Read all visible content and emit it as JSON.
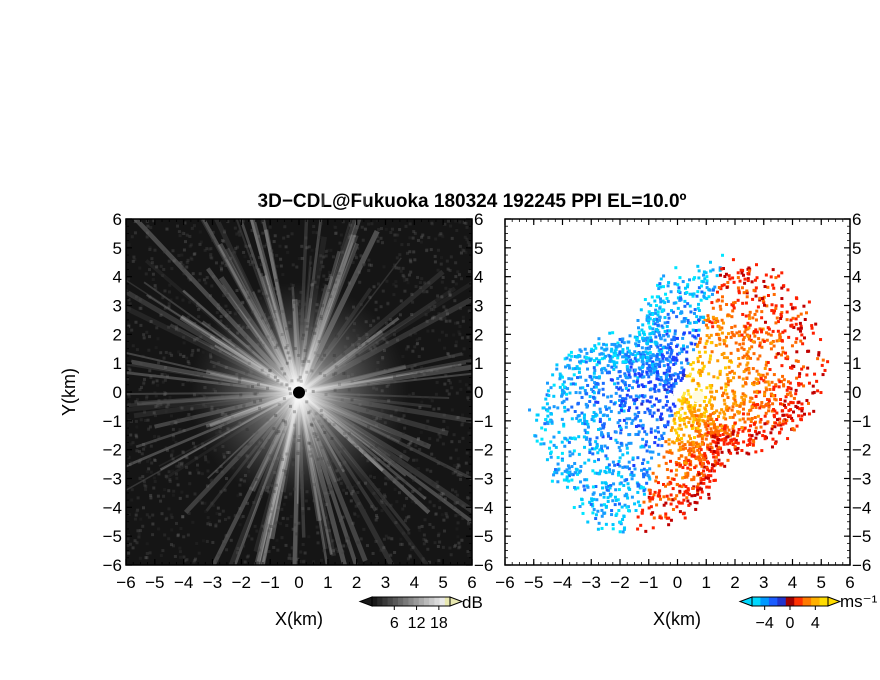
{
  "figure": {
    "title": "3D−CDL@Fukuoka 180324 192245 PPI EL=10.0º"
  },
  "chart_data": [
    {
      "type": "heatmap",
      "panel": "signal-intensity",
      "xlabel": "X(km)",
      "ylabel": "Y(km)",
      "xlim": [
        -6,
        6
      ],
      "ylim": [
        -6,
        6
      ],
      "xticks": [
        "−6",
        "−5",
        "−4",
        "−3",
        "−2",
        "−1",
        "0",
        "1",
        "2",
        "3",
        "4",
        "5",
        "6"
      ],
      "yticks": [
        "6",
        "5",
        "4",
        "3",
        "2",
        "1",
        "0",
        "−1",
        "−2",
        "−3",
        "−4",
        "−5",
        "−6"
      ],
      "colormap": "grayscale",
      "colorbar": {
        "unit": "dB",
        "ticks": [
          "6",
          "12",
          "18"
        ],
        "range": [
          0,
          21
        ]
      },
      "grid": false,
      "description_colors": {
        "low": "#111111",
        "high": "#ffffff",
        "origin_marker": "#000000"
      }
    },
    {
      "type": "heatmap",
      "panel": "radial-velocity",
      "xlabel": "X(km)",
      "xlim": [
        -6,
        6
      ],
      "ylim": [
        -6,
        6
      ],
      "xticks": [
        "−6",
        "−5",
        "−4",
        "−3",
        "−2",
        "−1",
        "0",
        "1",
        "2",
        "3",
        "4",
        "5",
        "6"
      ],
      "yticks": [
        "6",
        "5",
        "4",
        "3",
        "2",
        "1",
        "0",
        "−1",
        "−2",
        "−3",
        "−4",
        "−5",
        "−6"
      ],
      "colormap": "diverging cyan-blue-red-yellow",
      "colorbar": {
        "unit": "ms⁻¹",
        "ticks": [
          "−4",
          "0",
          "4"
        ],
        "range": [
          -6,
          6
        ]
      },
      "grid": false,
      "description_colors": {
        "negative_far": "#00e5ff",
        "negative": "#1a3cff",
        "near_zero": "#b00000",
        "positive": "#ff6a00",
        "positive_far": "#ffe000"
      }
    }
  ]
}
